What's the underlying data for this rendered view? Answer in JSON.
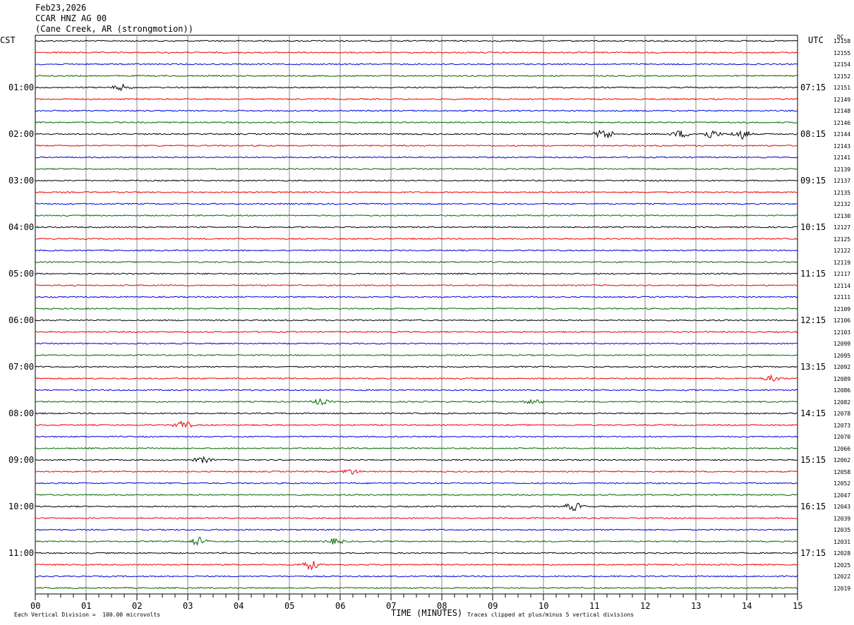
{
  "header": {
    "date": "Feb23,2026",
    "station": "CCAR HNZ AG 00",
    "location": "(Cane Creek, AR (strongmotion))"
  },
  "axis_labels": {
    "left_zone": "CST",
    "right_zone": "UTC",
    "dc_header": "DC",
    "xlabel": "TIME (MINUTES)",
    "scale_note": "Each Vertical Division =  100.00 microvolts",
    "clip_note": "Traces clipped at plus/minus 5 vertical divisions"
  },
  "colors": {
    "trace_cycle": [
      "#000000",
      "#ee0000",
      "#0000dd",
      "#006600"
    ],
    "grid": "#888888"
  },
  "chart_data": {
    "type": "line",
    "subtype": "helicorder",
    "x_range": [
      0,
      15
    ],
    "x_ticks": [
      "00",
      "01",
      "02",
      "03",
      "04",
      "05",
      "06",
      "07",
      "08",
      "09",
      "10",
      "11",
      "12",
      "13",
      "14",
      "15"
    ],
    "left_hour_labels": [
      "01:00",
      "02:00",
      "03:00",
      "04:00",
      "05:00",
      "06:00",
      "07:00",
      "08:00",
      "09:00",
      "10:00",
      "11:00"
    ],
    "right_hour_labels": [
      "07:15",
      "08:15",
      "09:15",
      "10:15",
      "11:15",
      "12:15",
      "13:15",
      "14:15",
      "15:15",
      "16:15",
      "17:15"
    ],
    "dc_values": [
      "12158",
      "12155",
      "12154",
      "12152",
      "12151",
      "12149",
      "12148",
      "12146",
      "12144",
      "12143",
      "12141",
      "12139",
      "12137",
      "12135",
      "12132",
      "12130",
      "12127",
      "12125",
      "12122",
      "12119",
      "12117",
      "12114",
      "12111",
      "12109",
      "12106",
      "12103",
      "12099",
      "12095",
      "12092",
      "12089",
      "12086",
      "12082",
      "12078",
      "12073",
      "12070",
      "12066",
      "12062",
      "12058",
      "12052",
      "12047",
      "12043",
      "12039",
      "12035",
      "12031",
      "12028",
      "12025",
      "12022",
      "12019"
    ],
    "traces_per_hour": 4,
    "trace_count": 48,
    "events": [
      {
        "trace": 4,
        "minute": 1.7,
        "amp": 4
      },
      {
        "trace": 8,
        "minute": 11.2,
        "amp": 8
      },
      {
        "trace": 8,
        "minute": 12.7,
        "amp": 5
      },
      {
        "trace": 8,
        "minute": 13.3,
        "amp": 6
      },
      {
        "trace": 8,
        "minute": 13.9,
        "amp": 7
      },
      {
        "trace": 29,
        "minute": 14.5,
        "amp": 4
      },
      {
        "trace": 31,
        "minute": 5.6,
        "amp": 4
      },
      {
        "trace": 31,
        "minute": 9.8,
        "amp": 3
      },
      {
        "trace": 33,
        "minute": 2.9,
        "amp": 6
      },
      {
        "trace": 36,
        "minute": 3.3,
        "amp": 4
      },
      {
        "trace": 37,
        "minute": 6.2,
        "amp": 4
      },
      {
        "trace": 40,
        "minute": 10.6,
        "amp": 6
      },
      {
        "trace": 43,
        "minute": 3.2,
        "amp": 6
      },
      {
        "trace": 43,
        "minute": 5.9,
        "amp": 4
      },
      {
        "trace": 45,
        "minute": 5.4,
        "amp": 7
      }
    ]
  }
}
